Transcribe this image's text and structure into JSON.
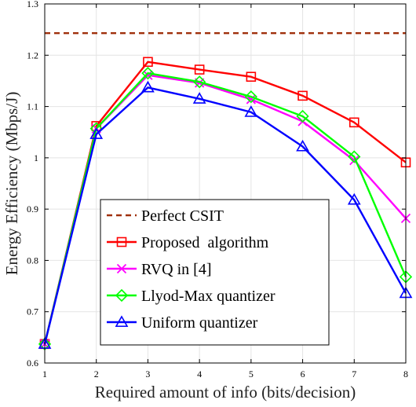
{
  "chart_data": {
    "type": "line",
    "xlabel": "Required amount of info (bits/decision)",
    "ylabel": "Energy Efficiency (Mbps/J)",
    "xlim": [
      1,
      8
    ],
    "ylim": [
      0.6,
      1.3
    ],
    "xticks": [
      "1",
      "2",
      "3",
      "4",
      "5",
      "6",
      "7",
      "8"
    ],
    "yticks": [
      "0.6",
      "0.7",
      "0.8",
      "0.9",
      "1",
      "1.1",
      "1.2",
      "1.3"
    ],
    "grid": true,
    "legend_position": "bottom-left",
    "x": [
      1,
      2,
      3,
      4,
      5,
      6,
      7,
      8
    ],
    "series": [
      {
        "name": "Perfect CSIT",
        "values": [
          1.243,
          1.243,
          1.243,
          1.243,
          1.243,
          1.243,
          1.243,
          1.243
        ],
        "color": "#a0300c",
        "marker": "none",
        "line": "dashed"
      },
      {
        "name": "Proposed  algorithm",
        "values": [
          0.637,
          1.062,
          1.187,
          1.172,
          1.158,
          1.121,
          1.069,
          0.991
        ],
        "color": "#ff0000",
        "marker": "square",
        "line": "solid"
      },
      {
        "name": "RVQ in [4]",
        "values": [
          0.637,
          1.057,
          1.161,
          1.146,
          1.114,
          1.071,
          0.995,
          0.882
        ],
        "color": "#ff00ff",
        "marker": "x",
        "line": "solid"
      },
      {
        "name": "Llyod-Max quantizer",
        "values": [
          0.637,
          1.057,
          1.165,
          1.148,
          1.119,
          1.081,
          1.002,
          0.768
        ],
        "color": "#00ff00",
        "marker": "diamond",
        "line": "solid"
      },
      {
        "name": "Uniform quantizer",
        "values": [
          0.637,
          1.046,
          1.137,
          1.115,
          1.089,
          1.022,
          0.918,
          0.736
        ],
        "color": "#0000ff",
        "marker": "triangle",
        "line": "solid"
      }
    ]
  }
}
